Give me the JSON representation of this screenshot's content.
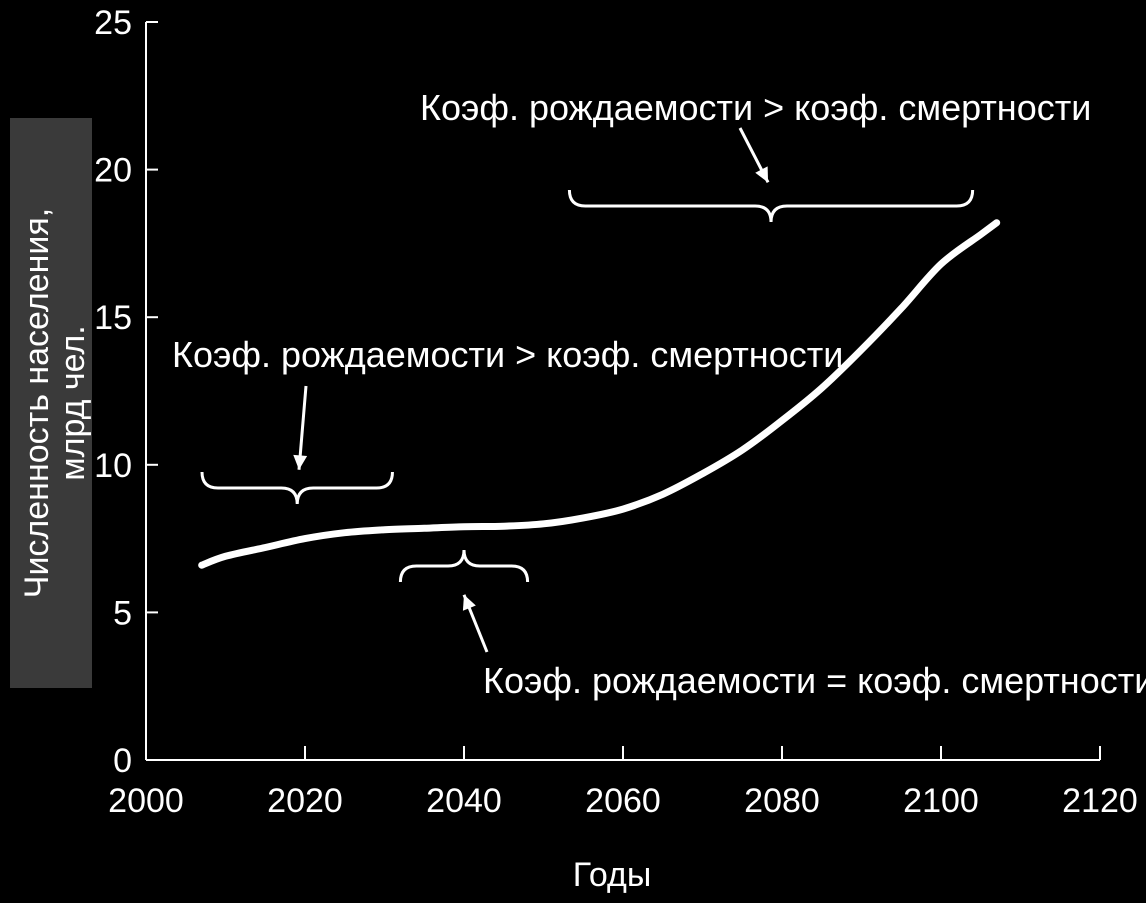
{
  "chart_data": {
    "type": "line",
    "title": "",
    "xlabel": "Годы",
    "ylabel": "Численность населения, млрд чел.",
    "ylabel_lines": [
      "Численность населения,",
      "млрд чел."
    ],
    "xlim": [
      2000,
      2120
    ],
    "ylim": [
      0,
      25
    ],
    "x_ticks": [
      2000,
      2020,
      2040,
      2060,
      2080,
      2100,
      2120
    ],
    "y_ticks": [
      0,
      5,
      10,
      15,
      20,
      25
    ],
    "grid": false,
    "legend": "none",
    "colors": {
      "background": "#000000",
      "foreground": "#ffffff"
    },
    "series": [
      {
        "x": [
          2007,
          2010,
          2015,
          2020,
          2025,
          2030,
          2035,
          2040,
          2045,
          2050,
          2055,
          2060,
          2065,
          2070,
          2075,
          2080,
          2085,
          2090,
          2095,
          2100,
          2105,
          2107
        ],
        "values": [
          6.6,
          6.9,
          7.2,
          7.5,
          7.7,
          7.8,
          7.85,
          7.9,
          7.92,
          8.0,
          8.2,
          8.5,
          9.0,
          9.7,
          10.5,
          11.5,
          12.6,
          13.9,
          15.3,
          16.8,
          17.8,
          18.2
        ]
      }
    ],
    "annotations": [
      {
        "text": "Коэф. рождаемости > коэф. смертности",
        "x_range": [
          2000,
          2031
        ],
        "arrow_to": [
          2020,
          9.9
        ]
      },
      {
        "text": "Коэф. рождаемости = коэф. смертности",
        "x_range": [
          2032,
          2048
        ],
        "arrow_to": [
          2040,
          5.8
        ]
      },
      {
        "text": "Коэф. рождаемости > коэф. смертности",
        "x_range": [
          2052,
          2107
        ],
        "arrow_to": [
          2079,
          19.5
        ]
      }
    ]
  }
}
